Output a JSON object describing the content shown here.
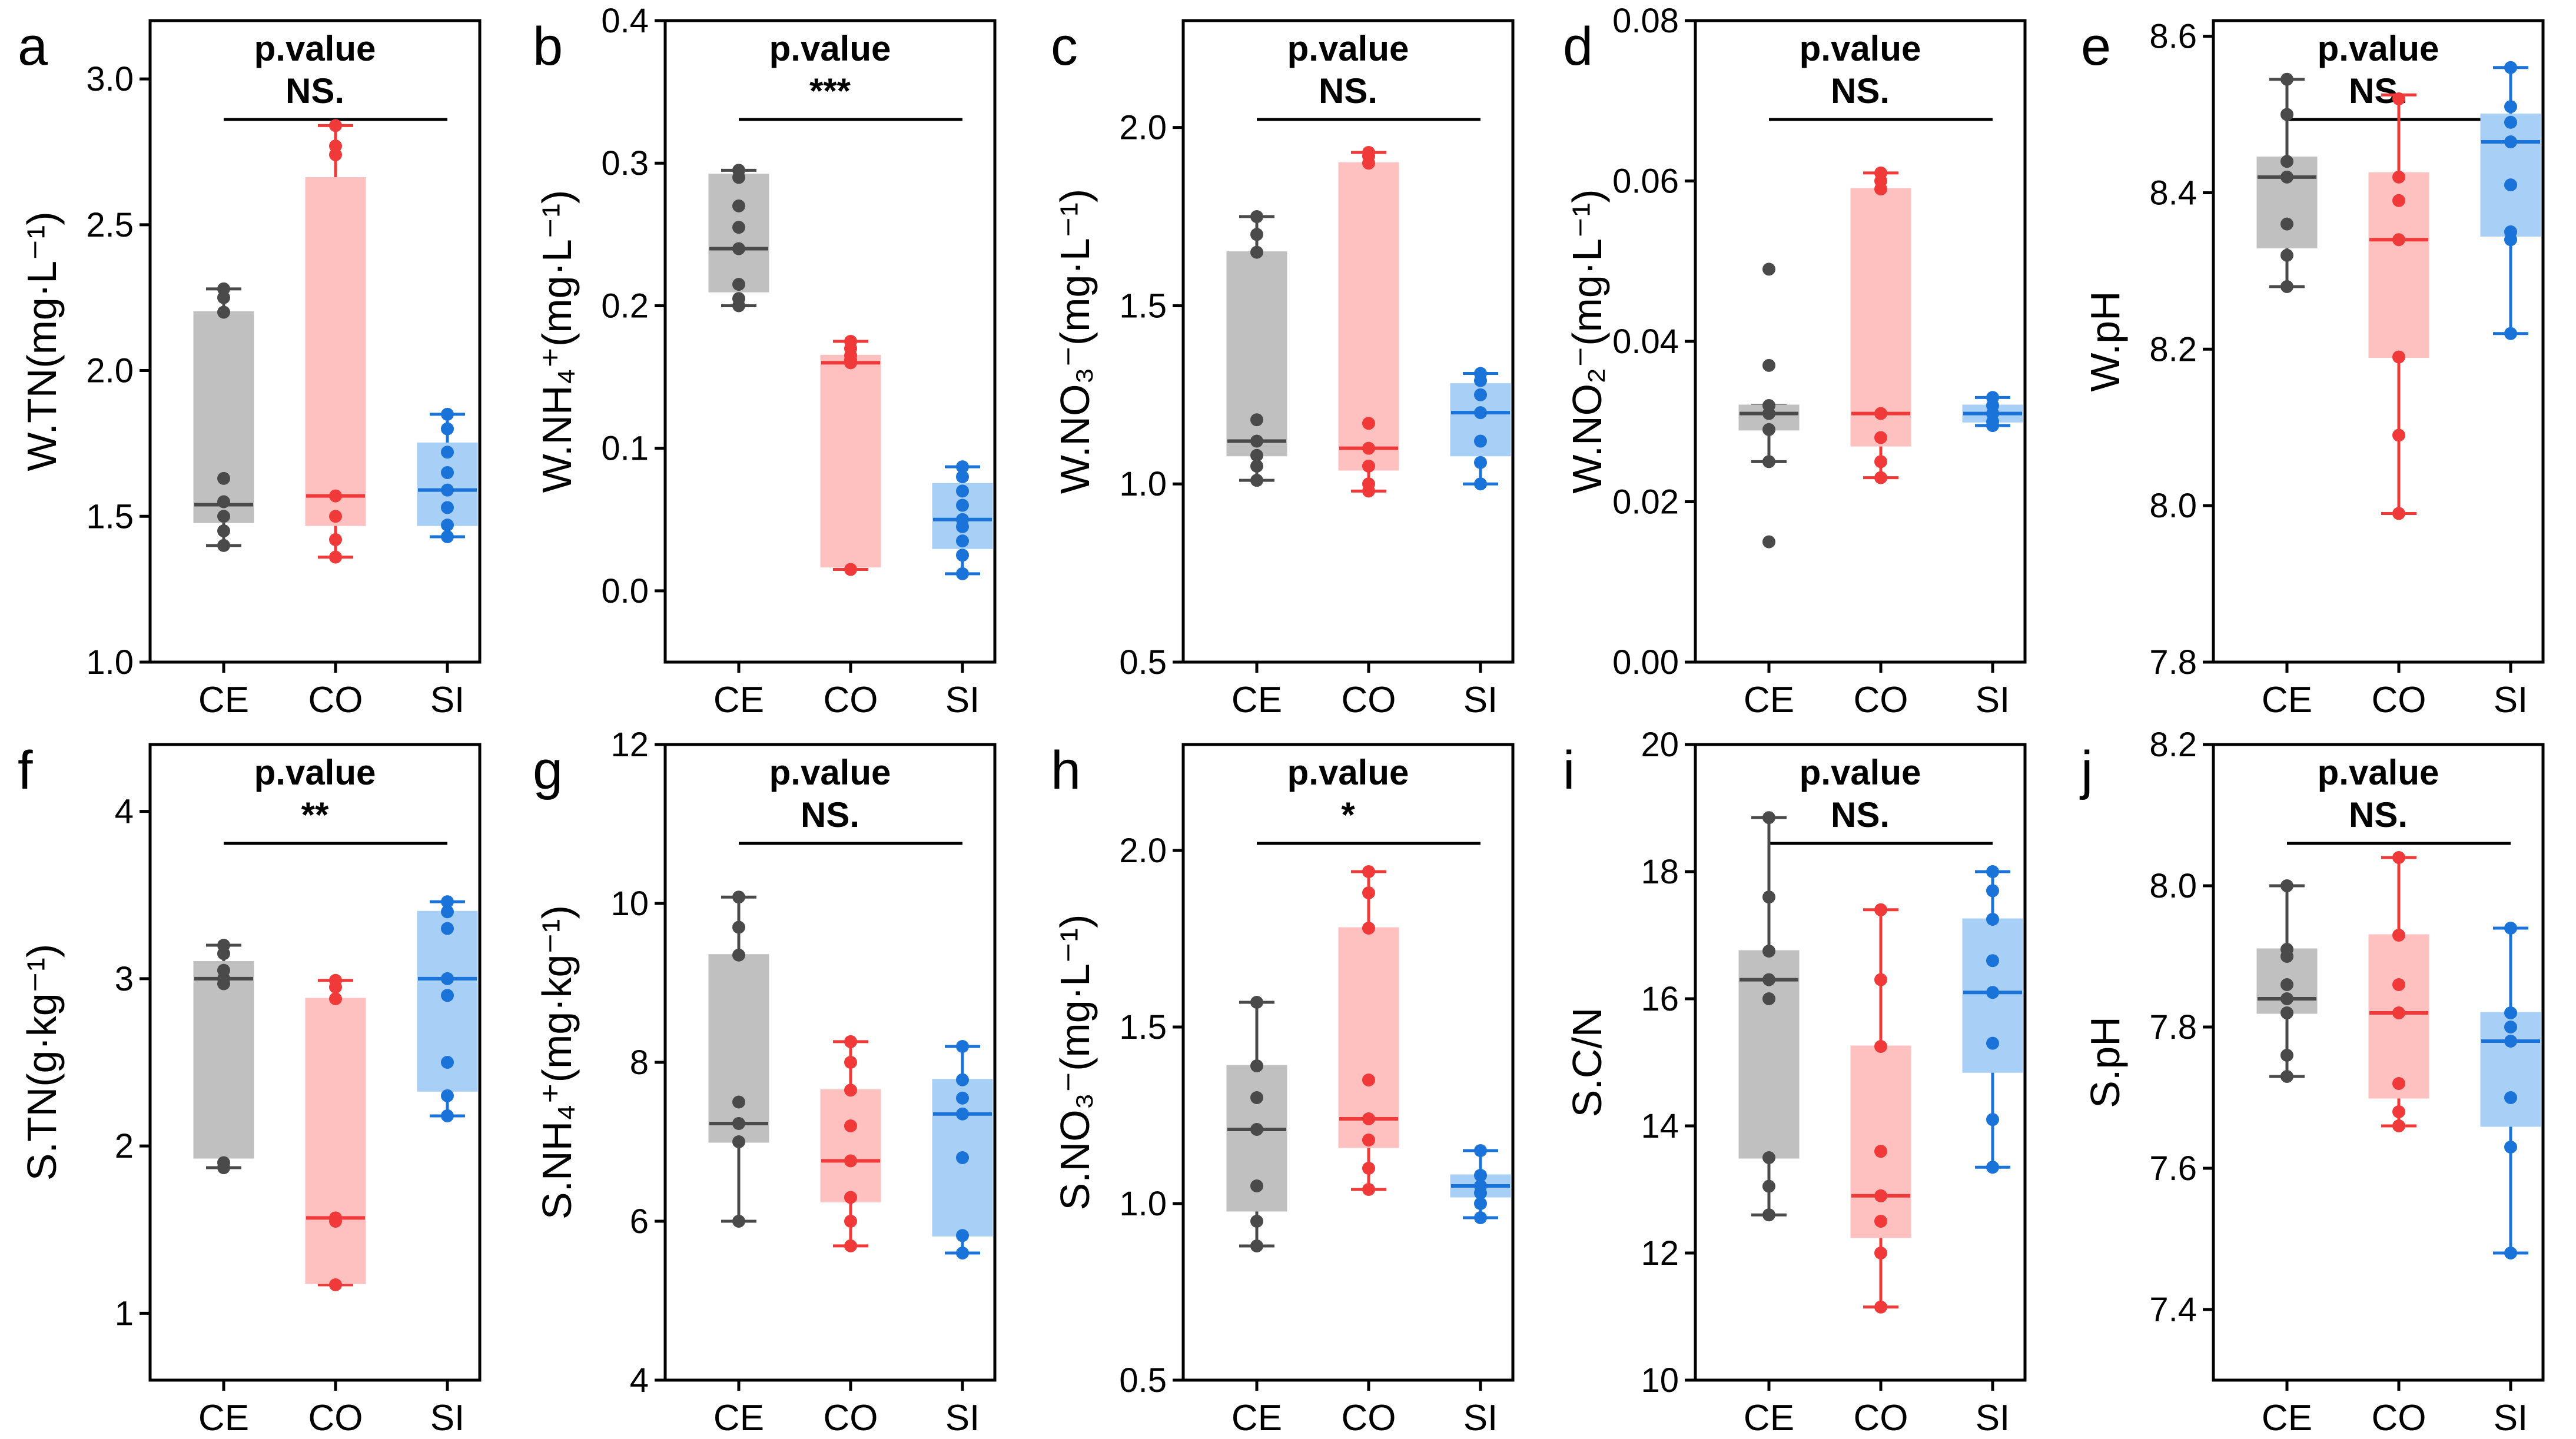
{
  "colors": {
    "CE": "#4a4a4a",
    "CO": "#f03a3a",
    "SI": "#1a73d8",
    "CE_fill": "#c0c0c0",
    "CO_fill": "#ffc0c0",
    "SI_fill": "#a8cff5"
  },
  "chart_data": [
    {
      "type": "box",
      "panel": "a",
      "ylabel": "W.TN(mg·L⁻¹)",
      "ylim": [
        1.0,
        3.2
      ],
      "yticks": [
        "1.0",
        "1.5",
        "2.0",
        "2.5",
        "3.0"
      ],
      "categories": [
        "CE",
        "CO",
        "SI"
      ],
      "ptitle": "p.value",
      "sig": "NS.",
      "boxes": [
        {
          "name": "CE",
          "q1": 1.48,
          "median": 1.54,
          "q3": 2.2,
          "whisker_low": 1.4,
          "whisker_high": 2.28,
          "points": [
            1.4,
            1.45,
            1.5,
            1.55,
            1.63,
            2.2,
            2.25,
            2.28
          ]
        },
        {
          "name": "CO",
          "q1": 1.47,
          "median": 1.57,
          "q3": 2.66,
          "whisker_low": 1.36,
          "whisker_high": 2.84,
          "points": [
            1.36,
            1.42,
            1.5,
            1.57,
            2.74,
            2.77,
            2.84
          ]
        },
        {
          "name": "SI",
          "q1": 1.47,
          "median": 1.59,
          "q3": 1.75,
          "whisker_low": 1.43,
          "whisker_high": 1.85,
          "points": [
            1.43,
            1.47,
            1.53,
            1.59,
            1.65,
            1.72,
            1.8,
            1.85
          ]
        }
      ]
    },
    {
      "type": "box",
      "panel": "b",
      "ylabel": "W.NH₄⁺(mg·L⁻¹)",
      "ylim": [
        -0.05,
        0.4
      ],
      "yticks": [
        "0.0",
        "0.1",
        "0.2",
        "0.3",
        "0.4"
      ],
      "categories": [
        "CE",
        "CO",
        "SI"
      ],
      "ptitle": "p.value",
      "sig": "***",
      "boxes": [
        {
          "name": "CE",
          "q1": 0.21,
          "median": 0.24,
          "q3": 0.292,
          "whisker_low": 0.2,
          "whisker_high": 0.295,
          "points": [
            0.2,
            0.205,
            0.215,
            0.24,
            0.255,
            0.27,
            0.29,
            0.295
          ]
        },
        {
          "name": "CO",
          "q1": 0.017,
          "median": 0.16,
          "q3": 0.165,
          "whisker_low": 0.015,
          "whisker_high": 0.175,
          "points": [
            0.015,
            0.16,
            0.162,
            0.165,
            0.17,
            0.175
          ]
        },
        {
          "name": "SI",
          "q1": 0.03,
          "median": 0.05,
          "q3": 0.075,
          "whisker_low": 0.012,
          "whisker_high": 0.087,
          "points": [
            0.012,
            0.025,
            0.035,
            0.045,
            0.05,
            0.06,
            0.07,
            0.08,
            0.087
          ]
        }
      ]
    },
    {
      "type": "box",
      "panel": "c",
      "ylabel": "W.NO₃⁻(mg·L⁻¹)",
      "ylim": [
        0.5,
        2.3
      ],
      "yticks": [
        "0.5",
        "1.0",
        "1.5",
        "2.0"
      ],
      "categories": [
        "CE",
        "CO",
        "SI"
      ],
      "ptitle": "p.value",
      "sig": "NS.",
      "boxes": [
        {
          "name": "CE",
          "q1": 1.08,
          "median": 1.12,
          "q3": 1.65,
          "whisker_low": 1.01,
          "whisker_high": 1.75,
          "points": [
            1.01,
            1.05,
            1.08,
            1.12,
            1.18,
            1.65,
            1.7,
            1.75
          ]
        },
        {
          "name": "CO",
          "q1": 1.04,
          "median": 1.1,
          "q3": 1.9,
          "whisker_low": 0.98,
          "whisker_high": 1.93,
          "points": [
            0.98,
            1.0,
            1.05,
            1.1,
            1.17,
            1.9,
            1.92,
            1.93
          ]
        },
        {
          "name": "SI",
          "q1": 1.08,
          "median": 1.2,
          "q3": 1.28,
          "whisker_low": 1.0,
          "whisker_high": 1.31,
          "points": [
            1.0,
            1.06,
            1.12,
            1.2,
            1.25,
            1.29,
            1.31
          ]
        }
      ]
    },
    {
      "type": "box",
      "panel": "d",
      "ylabel": "W.NO₂⁻(mg·L⁻¹)",
      "ylim": [
        0.0,
        0.08
      ],
      "yticks": [
        "0.00",
        "0.02",
        "0.04",
        "0.06",
        "0.08"
      ],
      "categories": [
        "CE",
        "CO",
        "SI"
      ],
      "ptitle": "p.value",
      "sig": "NS.",
      "boxes": [
        {
          "name": "CE",
          "q1": 0.029,
          "median": 0.031,
          "q3": 0.032,
          "whisker_low": 0.025,
          "whisker_high": 0.032,
          "points": [
            0.015,
            0.025,
            0.029,
            0.031,
            0.032,
            0.037,
            0.049
          ]
        },
        {
          "name": "CO",
          "q1": 0.027,
          "median": 0.031,
          "q3": 0.059,
          "whisker_low": 0.023,
          "whisker_high": 0.061,
          "points": [
            0.023,
            0.025,
            0.028,
            0.031,
            0.059,
            0.06,
            0.061
          ]
        },
        {
          "name": "SI",
          "q1": 0.03,
          "median": 0.031,
          "q3": 0.032,
          "whisker_low": 0.0295,
          "whisker_high": 0.033,
          "points": [
            0.0295,
            0.03,
            0.031,
            0.032,
            0.033
          ]
        }
      ]
    },
    {
      "type": "box",
      "panel": "e",
      "ylabel": "W.pH",
      "ylim": [
        7.8,
        8.62
      ],
      "yticks": [
        "7.8",
        "8.0",
        "8.2",
        "8.4",
        "8.6"
      ],
      "categories": [
        "CE",
        "CO",
        "SI"
      ],
      "ptitle": "p.value",
      "sig": "NS.",
      "boxes": [
        {
          "name": "CE",
          "q1": 8.33,
          "median": 8.42,
          "q3": 8.445,
          "whisker_low": 8.28,
          "whisker_high": 8.545,
          "points": [
            8.28,
            8.32,
            8.36,
            8.42,
            8.44,
            8.5,
            8.545
          ]
        },
        {
          "name": "CO",
          "q1": 8.19,
          "median": 8.34,
          "q3": 8.425,
          "whisker_low": 7.99,
          "whisker_high": 8.525,
          "points": [
            7.99,
            8.09,
            8.19,
            8.34,
            8.39,
            8.42,
            8.52
          ]
        },
        {
          "name": "SI",
          "q1": 8.345,
          "median": 8.465,
          "q3": 8.5,
          "whisker_low": 8.22,
          "whisker_high": 8.56,
          "points": [
            8.22,
            8.34,
            8.35,
            8.41,
            8.465,
            8.49,
            8.51,
            8.56
          ]
        }
      ]
    },
    {
      "type": "box",
      "panel": "f",
      "ylabel": "S.TN(g·kg⁻¹)",
      "ylim": [
        0.6,
        4.4
      ],
      "yticks": [
        "1",
        "2",
        "3",
        "4"
      ],
      "categories": [
        "CE",
        "CO",
        "SI"
      ],
      "ptitle": "p.value",
      "sig": "**",
      "boxes": [
        {
          "name": "CE",
          "q1": 1.93,
          "median": 3.0,
          "q3": 3.1,
          "whisker_low": 1.87,
          "whisker_high": 3.2,
          "points": [
            1.87,
            1.9,
            2.97,
            3.0,
            3.05,
            3.15,
            3.2
          ]
        },
        {
          "name": "CO",
          "q1": 1.18,
          "median": 1.57,
          "q3": 2.88,
          "whisker_low": 1.17,
          "whisker_high": 2.99,
          "points": [
            1.17,
            1.55,
            1.57,
            2.88,
            2.95,
            2.99
          ]
        },
        {
          "name": "SI",
          "q1": 2.33,
          "median": 3.0,
          "q3": 3.4,
          "whisker_low": 2.18,
          "whisker_high": 3.46,
          "points": [
            2.18,
            2.3,
            2.5,
            2.9,
            3.0,
            3.3,
            3.4,
            3.46
          ]
        }
      ]
    },
    {
      "type": "box",
      "panel": "g",
      "ylabel": "S.NH₄⁺(mg·kg⁻¹)",
      "ylim": [
        4,
        12
      ],
      "yticks": [
        "4",
        "6",
        "8",
        "10",
        "12"
      ],
      "categories": [
        "CE",
        "CO",
        "SI"
      ],
      "ptitle": "p.value",
      "sig": "NS.",
      "boxes": [
        {
          "name": "CE",
          "q1": 7.0,
          "median": 7.23,
          "q3": 9.35,
          "whisker_low": 6.0,
          "whisker_high": 10.08,
          "points": [
            6.0,
            7.0,
            7.23,
            7.5,
            9.35,
            9.7,
            10.08
          ]
        },
        {
          "name": "CO",
          "q1": 6.25,
          "median": 6.76,
          "q3": 7.65,
          "whisker_low": 5.69,
          "whisker_high": 8.26,
          "points": [
            5.69,
            6.0,
            6.3,
            6.76,
            7.2,
            7.65,
            8.0,
            8.26
          ]
        },
        {
          "name": "SI",
          "q1": 5.82,
          "median": 7.35,
          "q3": 7.78,
          "whisker_low": 5.6,
          "whisker_high": 8.2,
          "points": [
            5.6,
            5.82,
            6.8,
            7.35,
            7.55,
            7.78,
            8.2
          ]
        }
      ]
    },
    {
      "type": "box",
      "panel": "h",
      "ylabel": "S.NO₃⁻(mg·L⁻¹)",
      "ylim": [
        0.5,
        2.3
      ],
      "yticks": [
        "0.5",
        "1.0",
        "1.5",
        "2.0"
      ],
      "categories": [
        "CE",
        "CO",
        "SI"
      ],
      "ptitle": "p.value",
      "sig": "*",
      "boxes": [
        {
          "name": "CE",
          "q1": 0.98,
          "median": 1.21,
          "q3": 1.39,
          "whisker_low": 0.88,
          "whisker_high": 1.57,
          "points": [
            0.88,
            0.95,
            1.05,
            1.21,
            1.3,
            1.39,
            1.57
          ]
        },
        {
          "name": "CO",
          "q1": 1.16,
          "median": 1.24,
          "q3": 1.78,
          "whisker_low": 1.04,
          "whisker_high": 1.94,
          "points": [
            1.04,
            1.1,
            1.18,
            1.24,
            1.35,
            1.78,
            1.88,
            1.94
          ]
        },
        {
          "name": "SI",
          "q1": 1.02,
          "median": 1.05,
          "q3": 1.08,
          "whisker_low": 0.96,
          "whisker_high": 1.15,
          "points": [
            0.96,
            1.0,
            1.03,
            1.05,
            1.08,
            1.15
          ]
        }
      ]
    },
    {
      "type": "box",
      "panel": "i",
      "ylabel": "S.C/N",
      "ylim": [
        10,
        20
      ],
      "yticks": [
        "10",
        "12",
        "14",
        "16",
        "18",
        "20"
      ],
      "categories": [
        "CE",
        "CO",
        "SI"
      ],
      "ptitle": "p.value",
      "sig": "NS.",
      "boxes": [
        {
          "name": "CE",
          "q1": 13.5,
          "median": 16.3,
          "q3": 16.75,
          "whisker_low": 12.6,
          "whisker_high": 18.85,
          "points": [
            12.6,
            13.05,
            13.5,
            16.0,
            16.3,
            16.75,
            17.6,
            18.85
          ]
        },
        {
          "name": "CO",
          "q1": 12.25,
          "median": 12.9,
          "q3": 15.25,
          "whisker_low": 11.15,
          "whisker_high": 17.4,
          "points": [
            11.15,
            12.0,
            12.5,
            12.9,
            13.6,
            15.25,
            16.3,
            17.4
          ]
        },
        {
          "name": "SI",
          "q1": 14.85,
          "median": 16.1,
          "q3": 17.25,
          "whisker_low": 13.35,
          "whisker_high": 18.0,
          "points": [
            13.35,
            14.1,
            15.3,
            16.1,
            16.6,
            17.25,
            17.7,
            18.0
          ]
        }
      ]
    },
    {
      "type": "box",
      "panel": "j",
      "ylabel": "S.pH",
      "ylim": [
        7.3,
        8.2
      ],
      "yticks": [
        "7.4",
        "7.6",
        "7.8",
        "8.0",
        "8.2"
      ],
      "categories": [
        "CE",
        "CO",
        "SI"
      ],
      "ptitle": "p.value",
      "sig": "NS.",
      "boxes": [
        {
          "name": "CE",
          "q1": 7.82,
          "median": 7.84,
          "q3": 7.91,
          "whisker_low": 7.73,
          "whisker_high": 8.0,
          "points": [
            7.73,
            7.76,
            7.82,
            7.84,
            7.86,
            7.9,
            7.91,
            8.0
          ]
        },
        {
          "name": "CO",
          "q1": 7.7,
          "median": 7.82,
          "q3": 7.93,
          "whisker_low": 7.66,
          "whisker_high": 8.04,
          "points": [
            7.66,
            7.68,
            7.72,
            7.82,
            7.86,
            7.93,
            8.04
          ]
        },
        {
          "name": "SI",
          "q1": 7.66,
          "median": 7.78,
          "q3": 7.82,
          "whisker_low": 7.48,
          "whisker_high": 7.94,
          "points": [
            7.48,
            7.63,
            7.7,
            7.78,
            7.8,
            7.82,
            7.94
          ]
        }
      ]
    }
  ]
}
